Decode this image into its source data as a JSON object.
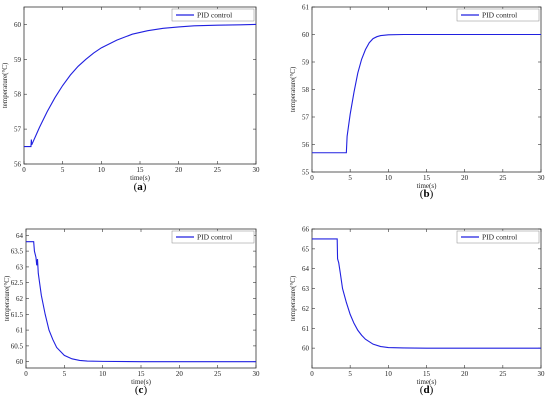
{
  "chart_data": [
    {
      "id": "a",
      "caption_label": "a",
      "type": "line",
      "xlabel": "time(s)",
      "ylabel": "temperature(°C)",
      "xlim": [
        0,
        30
      ],
      "ylim": [
        56,
        60.5
      ],
      "xticks": [
        0,
        5,
        10,
        15,
        20,
        25,
        30
      ],
      "yticks": [
        56,
        57,
        58,
        59,
        60
      ],
      "legend": "top-right",
      "grid": false,
      "series": [
        {
          "name": "PID control",
          "color": "#2020e0",
          "x": [
            0,
            0.9,
            0.95,
            1.0,
            1.1,
            1.2,
            1.5,
            2,
            3,
            4,
            5,
            6,
            7,
            8,
            9,
            10,
            12,
            14,
            16,
            18,
            20,
            22,
            25,
            28,
            30
          ],
          "y": [
            56.5,
            56.5,
            56.7,
            56.55,
            56.6,
            56.65,
            56.8,
            57.05,
            57.5,
            57.9,
            58.25,
            58.55,
            58.8,
            59.0,
            59.18,
            59.33,
            59.55,
            59.72,
            59.82,
            59.89,
            59.93,
            59.96,
            59.98,
            59.99,
            60.0
          ]
        }
      ]
    },
    {
      "id": "b",
      "caption_label": "b",
      "type": "line",
      "xlabel": "time(s)",
      "ylabel": "temperature(°C)",
      "xlim": [
        0,
        30
      ],
      "ylim": [
        55,
        61
      ],
      "xticks": [
        0,
        5,
        10,
        15,
        20,
        25,
        30
      ],
      "yticks": [
        55,
        56,
        57,
        58,
        59,
        60,
        61
      ],
      "legend": "top-right",
      "grid": false,
      "series": [
        {
          "name": "PID control",
          "color": "#2020e0",
          "x": [
            0,
            4.5,
            4.6,
            5,
            5.5,
            6,
            6.5,
            7,
            7.5,
            8,
            8.5,
            9,
            10,
            12,
            15,
            20,
            30
          ],
          "y": [
            55.7,
            55.7,
            56.3,
            57.1,
            57.9,
            58.6,
            59.1,
            59.45,
            59.7,
            59.85,
            59.92,
            59.96,
            59.99,
            60.0,
            60.0,
            60.0,
            60.0
          ]
        }
      ]
    },
    {
      "id": "c",
      "caption_label": "c",
      "type": "line",
      "xlabel": "time(s)",
      "ylabel": "temperature(°C)",
      "xlim": [
        0,
        30
      ],
      "ylim": [
        59.8,
        64.2
      ],
      "xticks": [
        0,
        5,
        10,
        15,
        20,
        25,
        30
      ],
      "yticks": [
        60,
        60.5,
        61,
        61.5,
        62,
        62.5,
        63,
        63.5,
        64
      ],
      "legend": "top-right",
      "grid": false,
      "series": [
        {
          "name": "PID control",
          "color": "#2020e0",
          "x": [
            0,
            1.0,
            1.1,
            1.3,
            1.4,
            1.5,
            1.6,
            2,
            2.5,
            3,
            3.5,
            4,
            5,
            6,
            7,
            8,
            10,
            15,
            30
          ],
          "y": [
            63.8,
            63.8,
            63.5,
            63.3,
            63.05,
            63.25,
            62.8,
            62.1,
            61.5,
            61.0,
            60.7,
            60.45,
            60.2,
            60.09,
            60.04,
            60.02,
            60.01,
            60.0,
            60.0
          ]
        }
      ]
    },
    {
      "id": "d",
      "caption_label": "d",
      "type": "line",
      "xlabel": "time(s)",
      "ylabel": "temperature(°C)",
      "xlim": [
        0,
        30
      ],
      "ylim": [
        59,
        66
      ],
      "xticks": [
        0,
        5,
        10,
        15,
        20,
        25,
        30
      ],
      "yticks": [
        60,
        61,
        62,
        63,
        64,
        65,
        66
      ],
      "legend": "top-right",
      "grid": false,
      "series": [
        {
          "name": "PID control",
          "color": "#2020e0",
          "x": [
            0,
            3.3,
            3.35,
            3.5,
            3.7,
            4,
            4.5,
            5,
            5.5,
            6,
            6.5,
            7,
            8,
            9,
            10,
            12,
            15,
            30
          ],
          "y": [
            65.5,
            65.5,
            64.5,
            64.3,
            63.8,
            63.0,
            62.3,
            61.7,
            61.25,
            60.9,
            60.65,
            60.45,
            60.2,
            60.08,
            60.03,
            60.01,
            60.0,
            60.0
          ]
        }
      ]
    }
  ]
}
